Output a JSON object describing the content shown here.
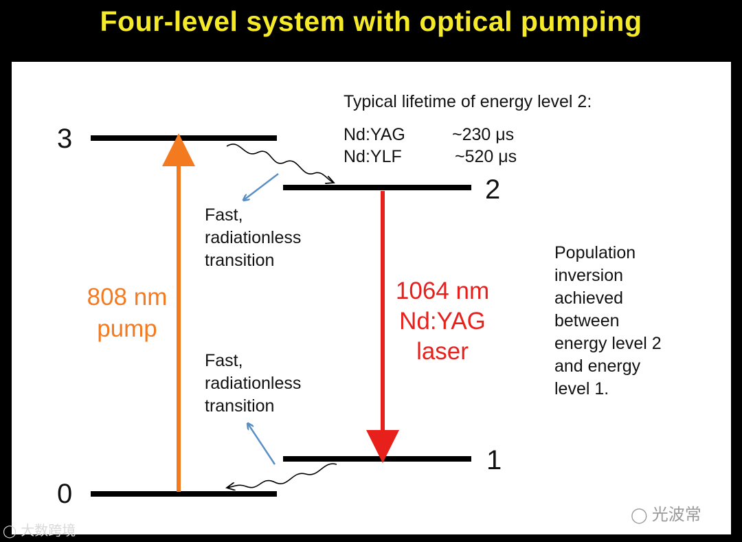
{
  "title": "Four-level system with optical pumping",
  "levels": {
    "l3": "3",
    "l2": "2",
    "l1": "1",
    "l0": "0"
  },
  "lifetime": {
    "heading": "Typical lifetime of energy level 2:",
    "rows": [
      {
        "material": "Nd:YAG",
        "value": "~230 μs"
      },
      {
        "material": "Nd:YLF",
        "value": "~520 μs"
      }
    ]
  },
  "transition_upper": [
    "Fast,",
    "radiationless",
    "transition"
  ],
  "transition_lower": [
    "Fast,",
    "radiationless",
    "transition"
  ],
  "pump": [
    "808 nm",
    "pump"
  ],
  "laser": [
    "1064 nm",
    "Nd:YAG",
    "laser"
  ],
  "population": [
    "Population",
    "inversion",
    "achieved",
    "between",
    "energy level 2",
    "and energy",
    "level 1."
  ],
  "watermark_right": "光波常",
  "watermark_left": "大数跨境",
  "colors": {
    "title": "#f5ea2a",
    "pump": "#f47a20",
    "laser": "#e8201c",
    "blue_arrow": "#5a8fc4"
  }
}
